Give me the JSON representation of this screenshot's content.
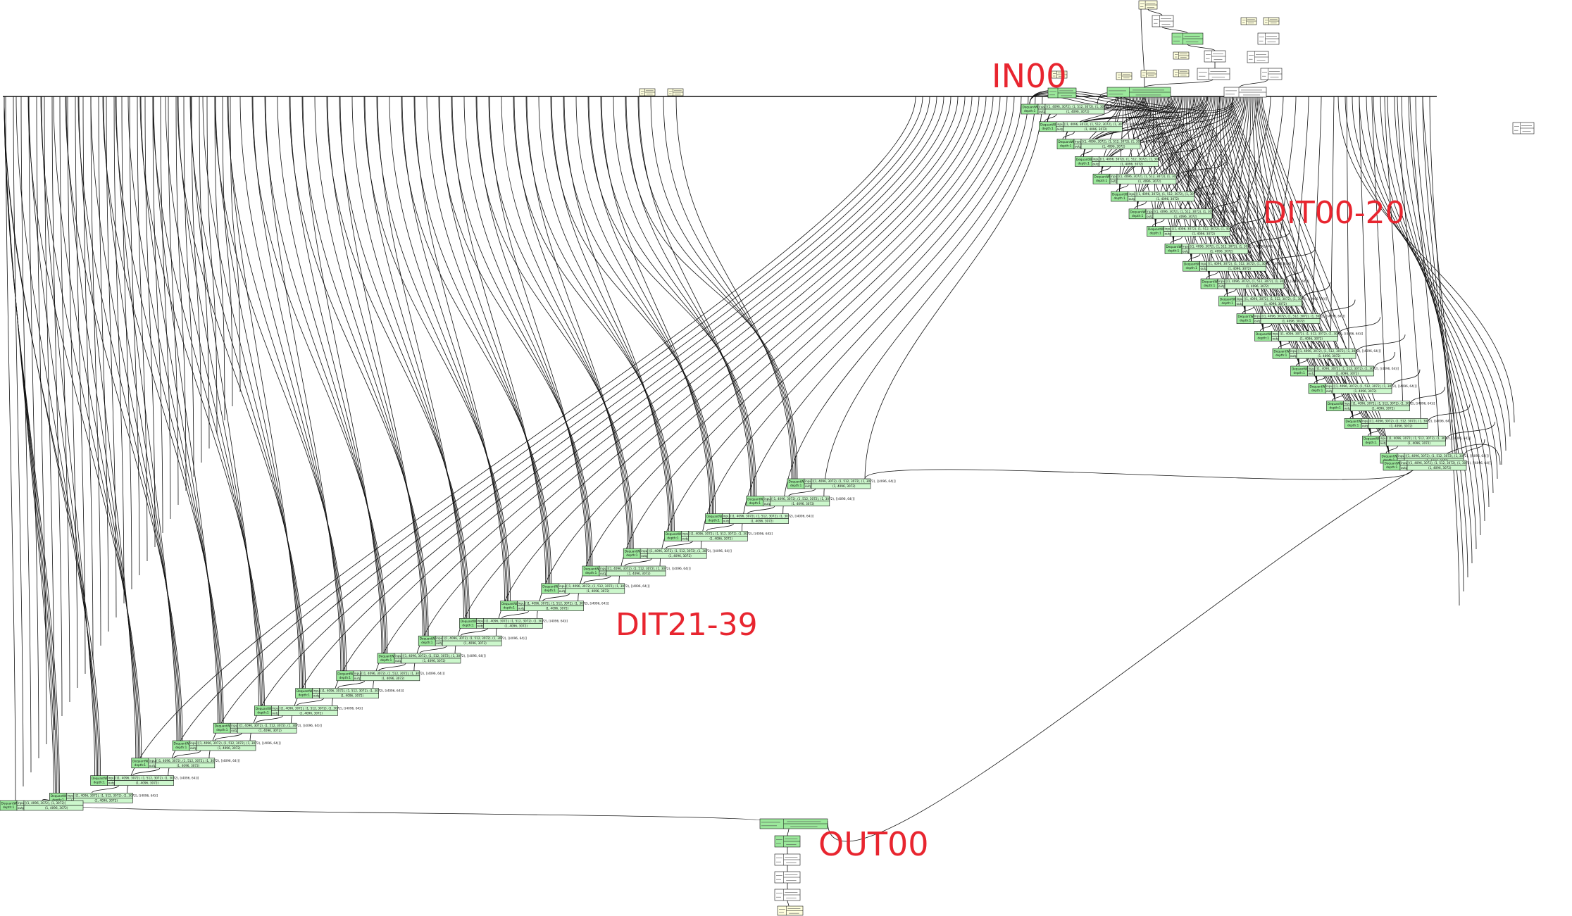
{
  "labels": {
    "input_section": "IN00",
    "dit_first": "DIT00-20",
    "dit_second": "DIT21-39",
    "output_section": "OUT00"
  },
  "block_node": {
    "name": "DequantWrapper",
    "sub": "depth:1",
    "input_key": "input:",
    "output_key": "output:",
    "input_shape": "[(1, 4096, 3072), (1, 512, 3072), (1, 3072), [(4096, 64)]]",
    "output_shape": "(1, 4096, 3072)"
  },
  "final_node": {
    "name": "DequantWrapper",
    "sub": "depth:1",
    "input_shape": "[(1, 4096, 3072), (1, 3072)]",
    "output_shape": "(1, 4096, 3072)"
  },
  "colors": {
    "block_fill": "#ccf7cc",
    "block_header": "#9be89b",
    "tensor_fill": "#ffffdd",
    "edge": "#111111",
    "label": "#e8252f"
  }
}
